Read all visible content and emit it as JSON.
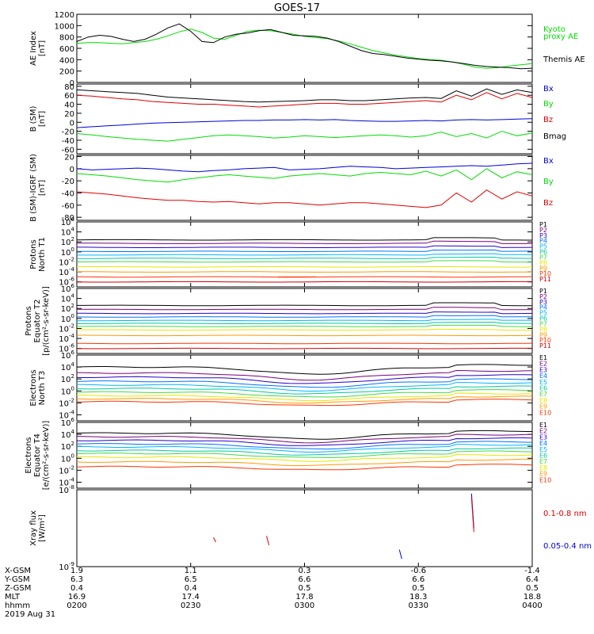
{
  "title": "GOES-17",
  "colors": {
    "black": "#000000",
    "red": "#dd0000",
    "green": "#00dd00",
    "blue": "#0000dd",
    "purple": "#9900bb",
    "p_colors": [
      "#000000",
      "#7a007a",
      "#2800c8",
      "#0070ff",
      "#00b4ff",
      "#00c8a0",
      "#44d844",
      "#e6e600",
      "#ff9900",
      "#ff3300",
      "#c80000"
    ]
  },
  "footer": {
    "row_labels": [
      "X-GSM",
      "Y-GSM",
      "Z-GSM",
      "MLT",
      "hhmm",
      "2019 Aug 31"
    ],
    "columns": [
      [
        "1.9",
        "6.3",
        "0.4",
        "16.9",
        "0200"
      ],
      [
        "1.1",
        "6.5",
        "0.4",
        "17.4",
        "0230"
      ],
      [
        "0.3",
        "6.6",
        "0.5",
        "17.8",
        "0300"
      ],
      [
        "-0.6",
        "6.6",
        "0.5",
        "18.3",
        "0330"
      ],
      [
        "-1.4",
        "6.4",
        "0.5",
        "18.8",
        "0400"
      ]
    ]
  },
  "chart_data": [
    {
      "id": "ae",
      "type": "line",
      "ylabel": [
        "AE Index",
        "[nT]"
      ],
      "ylim": [
        0,
        1200
      ],
      "yticks": [
        "0",
        "200",
        "400",
        "600",
        "800",
        "1000",
        "1200"
      ],
      "x": [
        0,
        3,
        6,
        9,
        12,
        15,
        18,
        21,
        24,
        27,
        30,
        33,
        36,
        39,
        42,
        45,
        48,
        51,
        54,
        57,
        60,
        63,
        66,
        69,
        72,
        75,
        78,
        81,
        84,
        87,
        90,
        93,
        96,
        99,
        102,
        105,
        108,
        111,
        114,
        117,
        120
      ],
      "series": [
        {
          "name": "Kyoto proxy AE",
          "color": "#00dd00",
          "values": [
            690,
            700,
            700,
            690,
            680,
            700,
            720,
            760,
            820,
            890,
            940,
            880,
            780,
            760,
            830,
            900,
            920,
            910,
            880,
            850,
            810,
            790,
            770,
            730,
            680,
            620,
            560,
            520,
            480,
            450,
            420,
            400,
            390,
            360,
            320,
            270,
            250,
            260,
            290,
            310,
            330
          ]
        },
        {
          "name": "Themis AE",
          "color": "#000000",
          "values": [
            720,
            800,
            830,
            810,
            760,
            720,
            760,
            850,
            960,
            1030,
            900,
            720,
            700,
            800,
            850,
            870,
            910,
            930,
            880,
            830,
            820,
            810,
            780,
            720,
            640,
            560,
            510,
            490,
            460,
            430,
            410,
            390,
            380,
            360,
            330,
            300,
            280,
            270,
            260,
            240,
            250
          ]
        }
      ],
      "legend": [
        "Kyoto",
        "proxy AE",
        "Themis AE"
      ]
    },
    {
      "id": "bsm",
      "type": "line",
      "ylabel": [
        "B (SM)",
        "[nT]"
      ],
      "ylim": [
        -70,
        85
      ],
      "yticks": [
        "-60",
        "-40",
        "-20",
        "0",
        "20",
        "40",
        "60",
        "80"
      ],
      "x": [
        0,
        4,
        8,
        12,
        16,
        20,
        24,
        28,
        32,
        36,
        40,
        44,
        48,
        52,
        56,
        60,
        64,
        68,
        72,
        76,
        80,
        84,
        88,
        92,
        96,
        100,
        104,
        108,
        112,
        116,
        120
      ],
      "series": [
        {
          "name": "Bx",
          "color": "#0000dd",
          "values": [
            -12,
            -10,
            -8,
            -6,
            -4,
            -2,
            -1,
            0,
            1,
            2,
            3,
            4,
            4,
            5,
            5,
            6,
            5,
            6,
            4,
            3,
            2,
            2,
            3,
            4,
            3,
            5,
            6,
            5,
            6,
            7,
            8
          ]
        },
        {
          "name": "By",
          "color": "#00dd00",
          "values": [
            -25,
            -28,
            -32,
            -35,
            -38,
            -40,
            -42,
            -38,
            -34,
            -30,
            -28,
            -30,
            -32,
            -35,
            -33,
            -30,
            -32,
            -34,
            -32,
            -30,
            -28,
            -30,
            -33,
            -30,
            -22,
            -32,
            -25,
            -35,
            -20,
            -30,
            -24
          ]
        },
        {
          "name": "Bz",
          "color": "#dd0000",
          "values": [
            60,
            58,
            55,
            52,
            50,
            46,
            44,
            42,
            40,
            40,
            38,
            36,
            34,
            36,
            38,
            40,
            42,
            42,
            40,
            40,
            42,
            44,
            46,
            48,
            45,
            60,
            50,
            66,
            52,
            64,
            55
          ]
        },
        {
          "name": "Bmag",
          "color": "#000000",
          "values": [
            72,
            70,
            68,
            66,
            64,
            60,
            56,
            54,
            52,
            50,
            48,
            46,
            45,
            46,
            47,
            48,
            50,
            50,
            48,
            48,
            50,
            52,
            54,
            55,
            53,
            70,
            58,
            74,
            62,
            72,
            66
          ]
        }
      ],
      "legend": [
        "Bx",
        "By",
        "Bz",
        "Bmag"
      ]
    },
    {
      "id": "bigrf",
      "type": "line",
      "ylabel": [
        "B (SM)-IGRF (SM)",
        "[nT]"
      ],
      "ylim": [
        -85,
        22
      ],
      "yticks": [
        "-80",
        "-60",
        "-40",
        "-20",
        "0",
        "20"
      ],
      "x": [
        0,
        4,
        8,
        12,
        16,
        20,
        24,
        28,
        32,
        36,
        40,
        44,
        48,
        52,
        56,
        60,
        64,
        68,
        72,
        76,
        80,
        84,
        88,
        92,
        96,
        100,
        104,
        108,
        112,
        116,
        120
      ],
      "series": [
        {
          "name": "Bx",
          "color": "#0000dd",
          "values": [
            0,
            -2,
            -1,
            0,
            1,
            0,
            -2,
            -4,
            -5,
            -3,
            -2,
            0,
            1,
            2,
            -2,
            -1,
            0,
            2,
            4,
            3,
            2,
            0,
            1,
            2,
            3,
            4,
            5,
            4,
            6,
            8,
            9
          ]
        },
        {
          "name": "By",
          "color": "#00dd00",
          "values": [
            -8,
            -10,
            -12,
            -15,
            -18,
            -20,
            -22,
            -18,
            -15,
            -12,
            -10,
            -12,
            -14,
            -16,
            -12,
            -10,
            -8,
            -10,
            -12,
            -8,
            -6,
            -8,
            -10,
            -4,
            -12,
            -2,
            -18,
            0,
            -15,
            -5,
            -10
          ]
        },
        {
          "name": "Bz",
          "color": "#dd0000",
          "values": [
            -38,
            -40,
            -42,
            -45,
            -48,
            -50,
            -52,
            -52,
            -54,
            -55,
            -54,
            -56,
            -58,
            -56,
            -56,
            -58,
            -60,
            -58,
            -56,
            -56,
            -58,
            -60,
            -62,
            -64,
            -60,
            -40,
            -55,
            -35,
            -50,
            -38,
            -45
          ]
        }
      ],
      "legend": [
        "Bx",
        "By",
        "Bz"
      ]
    },
    {
      "id": "pn",
      "type": "line",
      "log": true,
      "ylabel": [
        "Protons",
        "North T1"
      ],
      "ylim_exp": [
        -7,
        6
      ],
      "yticks_exp": [
        -6,
        -4,
        -2,
        0,
        2,
        4,
        6
      ],
      "x": [
        0,
        20,
        40,
        60,
        80,
        100,
        120
      ],
      "levels": [
        2.4,
        1.7,
        0.9,
        0.1,
        -0.6,
        -1.3,
        -2.0,
        -3.0,
        -4.0,
        -5.0,
        -6.0
      ],
      "bump": [
        0.4,
        0.4,
        0.3,
        0.3,
        0.2,
        0.2,
        0.2,
        0,
        0,
        0,
        0
      ],
      "extra": {
        "color": "#ff3300",
        "x0": 53,
        "x1": 63,
        "exp": -5.0
      },
      "legend": [
        "P1",
        "P2",
        "P3",
        "P4",
        "P5",
        "P6",
        "P7",
        "P8",
        "P9",
        "P10",
        "P11"
      ]
    },
    {
      "id": "pe",
      "type": "line",
      "log": true,
      "ylabel": [
        "Protons",
        "Equator T2",
        "[p/(cm²-s-sr-keV)]"
      ],
      "ylim_exp": [
        -7,
        6
      ],
      "yticks_exp": [
        -6,
        -4,
        -2,
        0,
        2,
        4,
        6
      ],
      "x": [
        0,
        20,
        40,
        60,
        80,
        100,
        120
      ],
      "levels": [
        2.6,
        1.8,
        1.0,
        0.3,
        -0.4,
        -1.0,
        -1.6,
        -2.3,
        -3.4,
        -5.0,
        -6.0
      ],
      "bump": [
        0.5,
        0.4,
        0.3,
        0.3,
        0.2,
        0.2,
        0.2,
        0.1,
        0,
        0,
        0
      ],
      "legend": [
        "P1",
        "P2",
        "P3",
        "P4",
        "P5",
        "P6",
        "P7",
        "P8",
        "P9",
        "P10",
        "P11"
      ]
    },
    {
      "id": "en",
      "type": "line",
      "log": true,
      "ylabel": [
        "Electrons",
        "North T3"
      ],
      "ylim_exp": [
        -5,
        6
      ],
      "yticks_exp": [
        -4,
        -2,
        0,
        2,
        4,
        6
      ],
      "x": [
        0,
        20,
        40,
        60,
        80,
        100,
        120
      ],
      "levels": [
        4.0,
        3.0,
        2.3,
        1.6,
        1.0,
        0.4,
        -0.2,
        -0.8,
        -1.3,
        -1.8
      ],
      "dip": 1.2,
      "legend": [
        "E1",
        "E2",
        "E3",
        "E4",
        "E5",
        "E6",
        "E7",
        "E8",
        "E9",
        "E10"
      ]
    },
    {
      "id": "ee",
      "type": "line",
      "log": true,
      "ylabel": [
        "Electrons",
        "Equator T4",
        "[e/(cm²-s-sr-keV)]"
      ],
      "ylim_exp": [
        -5,
        6
      ],
      "yticks_exp": [
        -4,
        -2,
        0,
        2,
        4,
        6
      ],
      "x": [
        0,
        20,
        40,
        60,
        80,
        100,
        120
      ],
      "levels": [
        4.2,
        3.6,
        3.0,
        2.4,
        1.9,
        1.3,
        0.8,
        0.2,
        -0.6,
        -1.4
      ],
      "dip": 1.0,
      "legend": [
        "E1",
        "E2",
        "E3",
        "E4",
        "E5",
        "E6",
        "E7",
        "E8",
        "E9",
        "E10"
      ]
    },
    {
      "id": "xray",
      "type": "line",
      "log": true,
      "ylabel": [
        "Xray flux",
        "[W/m²]"
      ],
      "ylim_exp": [
        -9,
        -8
      ],
      "yticks_exp": [
        -9,
        -8
      ],
      "legend": [
        "0.1-0.8 nm",
        "0.05-0.4 nm"
      ],
      "segments": [
        {
          "color": "#0000dd",
          "x": 104,
          "e0": -8.05,
          "e1": -8.5
        },
        {
          "color": "#dd0000",
          "x": 104,
          "e0": -8.1,
          "e1": -8.55
        },
        {
          "color": "#0000dd",
          "x": 85,
          "e0": -8.78,
          "e1": -8.9
        },
        {
          "color": "#dd0000",
          "x": 36,
          "e0": -8.62,
          "e1": -8.68
        },
        {
          "color": "#dd0000",
          "x": 50,
          "e0": -8.6,
          "e1": -8.72
        }
      ]
    }
  ]
}
